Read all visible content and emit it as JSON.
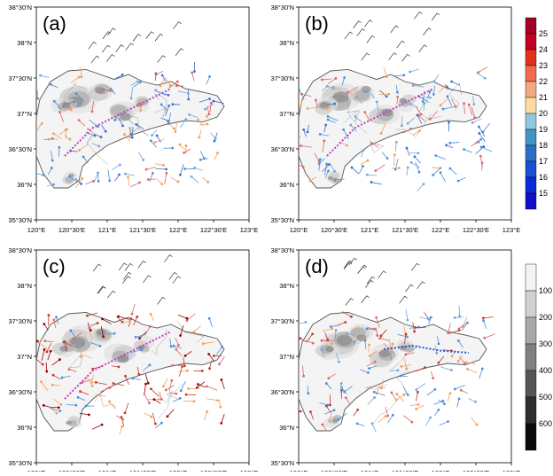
{
  "panels": [
    {
      "label": "(a)",
      "coast_color": "#555555",
      "station_colors": [
        "#4a90d9",
        "#f0a060",
        "#6fa8dc",
        "#e06666",
        "#3b6fd4"
      ],
      "track_color": "#c040c0"
    },
    {
      "label": "(b)",
      "coast_color": "#555555",
      "station_colors": [
        "#4a90d9",
        "#f0a060",
        "#6fa8dc",
        "#e06666",
        "#3b6fd4"
      ],
      "track_color": "#c040c0"
    },
    {
      "label": "(c)",
      "coast_color": "#555555",
      "station_colors": [
        "#c0392b",
        "#e06666",
        "#f0a060",
        "#4a90d9",
        "#990000"
      ],
      "track_color": "#c040c0"
    },
    {
      "label": "(d)",
      "coast_color": "#555555",
      "station_colors": [
        "#4a90d9",
        "#e06666",
        "#f0a060",
        "#6fa8dc",
        "#c0392b"
      ],
      "track_color": "#3050d0"
    }
  ],
  "axes": {
    "x_ticks": [
      "120°E",
      "120°30'E",
      "121°E",
      "121°30'E",
      "122°E",
      "122°30'E",
      "123°E"
    ],
    "y_ticks": [
      "38°30'N",
      "38°N",
      "37°30'N",
      "37°N",
      "36°30'N",
      "36°N",
      "35°30'N"
    ],
    "lon_range": [
      120,
      123
    ],
    "lat_range": [
      35.5,
      38.5
    ]
  },
  "temp_colorbar": {
    "labels": [
      "25",
      "24",
      "23",
      "22",
      "21",
      "20",
      "19",
      "18",
      "17",
      "16",
      "15"
    ],
    "colors": [
      "#a50026",
      "#c4001f",
      "#e0301e",
      "#f06a4e",
      "#f4a582",
      "#fddca0",
      "#92c5de",
      "#4393c3",
      "#2a6fc4",
      "#1a4fd0",
      "#0a2ad8",
      "#1010c8"
    ]
  },
  "precip_colorbar": {
    "labels": [
      "100",
      "200",
      "300",
      "400",
      "500",
      "600"
    ],
    "colors": [
      "#f4f4f4",
      "#d0d0d0",
      "#a8a8a8",
      "#808080",
      "#555555",
      "#2e2e2e",
      "#0a0a0a"
    ]
  }
}
